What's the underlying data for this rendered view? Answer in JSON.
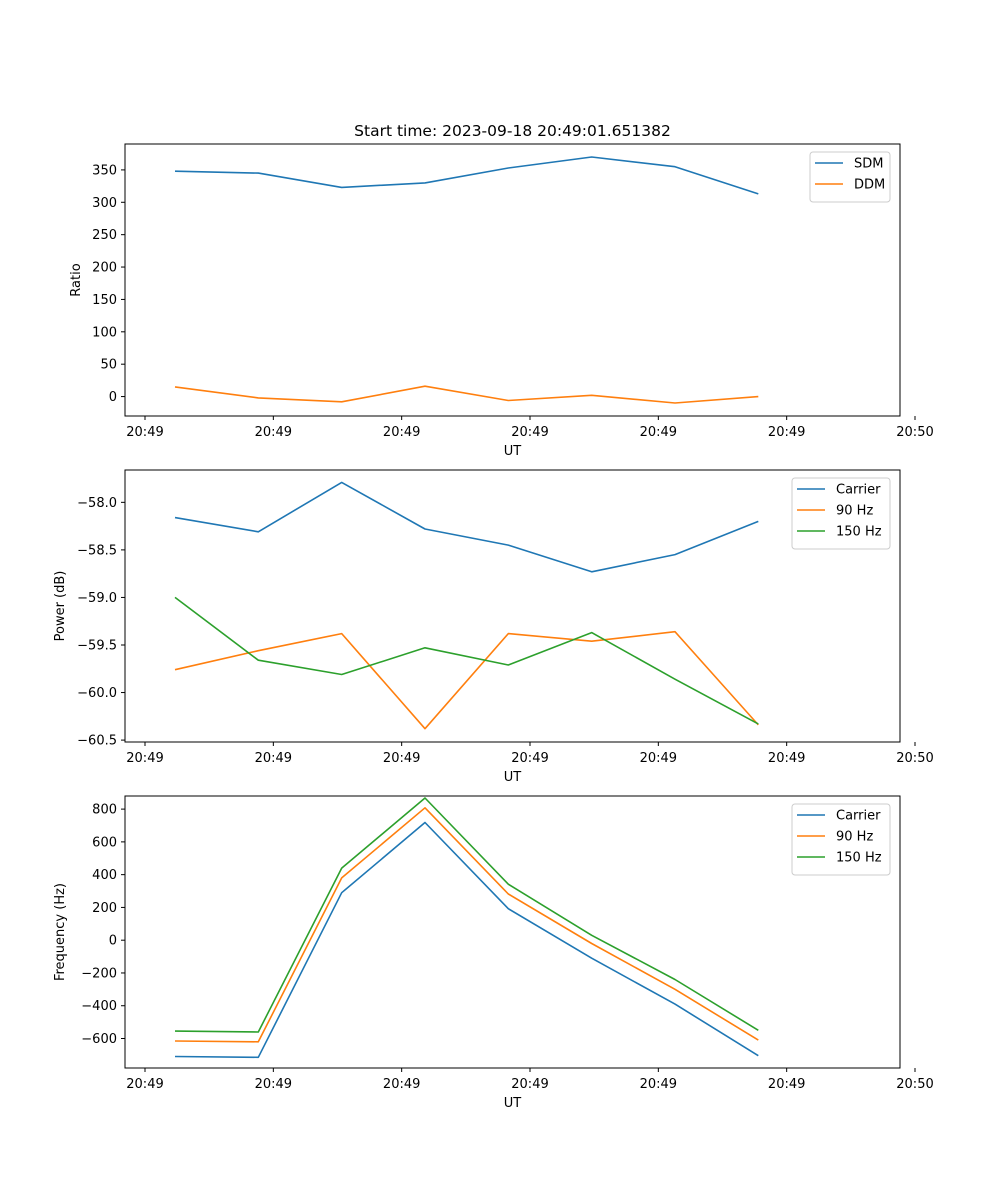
{
  "chart_data": [
    {
      "type": "line",
      "title": "Start time: 2023-09-18 20:49:01.651382",
      "xlabel": "UT",
      "ylabel": "Ratio",
      "ylim": [
        -30,
        390
      ],
      "yticks": [
        0,
        50,
        100,
        150,
        200,
        250,
        300,
        350
      ],
      "xlim": [
        -0.6,
        8.7
      ],
      "xtick_positions": [
        -0.36,
        1.18,
        2.72,
        4.26,
        5.8,
        7.34,
        8.88
      ],
      "xtick_labels": [
        "20:49",
        "20:49",
        "20:49",
        "20:49",
        "20:49",
        "20:49",
        "20:50"
      ],
      "x": [
        0,
        1,
        2,
        3,
        4,
        5,
        6,
        7
      ],
      "grid": false,
      "legend": "top-right",
      "series": [
        {
          "name": "SDM",
          "color": "#1f77b4",
          "values": [
            348,
            345,
            323,
            330,
            353,
            370,
            355,
            313
          ]
        },
        {
          "name": "DDM",
          "color": "#ff7f0e",
          "values": [
            15,
            -2,
            -8,
            16,
            -6,
            2,
            -10,
            0
          ]
        }
      ]
    },
    {
      "type": "line",
      "title": "",
      "xlabel": "UT",
      "ylabel": "Power (dB)",
      "ylim": [
        -60.52,
        -57.66
      ],
      "yticks": [
        -60.5,
        -60.0,
        -59.5,
        -59.0,
        -58.5,
        -58.0
      ],
      "ytick_labels": [
        "−60.5",
        "−60.0",
        "−59.5",
        "−59.0",
        "−58.5",
        "−58.0"
      ],
      "xlim": [
        -0.6,
        8.7
      ],
      "xtick_positions": [
        -0.36,
        1.18,
        2.72,
        4.26,
        5.8,
        7.34,
        8.88
      ],
      "xtick_labels": [
        "20:49",
        "20:49",
        "20:49",
        "20:49",
        "20:49",
        "20:49",
        "20:50"
      ],
      "x": [
        0,
        1,
        2,
        3,
        4,
        5,
        6,
        7
      ],
      "grid": false,
      "legend": "top-right",
      "series": [
        {
          "name": "Carrier",
          "color": "#1f77b4",
          "values": [
            -58.16,
            -58.31,
            -57.79,
            -58.28,
            -58.45,
            -58.73,
            -58.55,
            -58.2
          ]
        },
        {
          "name": "90 Hz",
          "color": "#ff7f0e",
          "values": [
            -59.76,
            -59.56,
            -59.38,
            -60.38,
            -59.38,
            -59.46,
            -59.36,
            -60.34
          ]
        },
        {
          "name": "150 Hz",
          "color": "#2ca02c",
          "values": [
            -59.0,
            -59.66,
            -59.81,
            -59.53,
            -59.71,
            -59.37,
            -59.86,
            -60.33
          ]
        }
      ]
    },
    {
      "type": "line",
      "title": "",
      "xlabel": "UT",
      "ylabel": "Frequency (Hz)",
      "ylim": [
        -780,
        880
      ],
      "yticks": [
        -600,
        -400,
        -200,
        0,
        200,
        400,
        600,
        800
      ],
      "ytick_labels": [
        "−600",
        "−400",
        "−200",
        "0",
        "200",
        "400",
        "600",
        "800"
      ],
      "xlim": [
        -0.6,
        8.7
      ],
      "xtick_positions": [
        -0.36,
        1.18,
        2.72,
        4.26,
        5.8,
        7.34,
        8.88
      ],
      "xtick_labels": [
        "20:49",
        "20:49",
        "20:49",
        "20:49",
        "20:49",
        "20:49",
        "20:50"
      ],
      "x": [
        0,
        1,
        2,
        3,
        4,
        5,
        6,
        7
      ],
      "grid": false,
      "legend": "top-right",
      "series": [
        {
          "name": "Carrier",
          "color": "#1f77b4",
          "values": [
            -710,
            -715,
            290,
            718,
            192,
            -110,
            -390,
            -705
          ]
        },
        {
          "name": "90 Hz",
          "color": "#ff7f0e",
          "values": [
            -615,
            -620,
            380,
            808,
            282,
            -20,
            -300,
            -610
          ]
        },
        {
          "name": "150 Hz",
          "color": "#2ca02c",
          "values": [
            -555,
            -560,
            440,
            868,
            342,
            30,
            -240,
            -550
          ]
        }
      ]
    }
  ]
}
